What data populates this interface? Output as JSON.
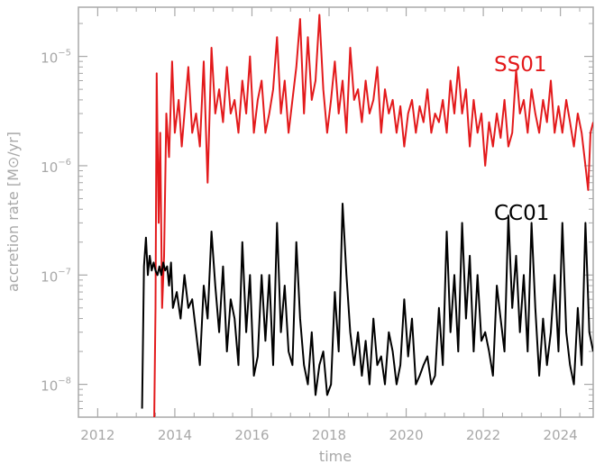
{
  "chart_data": {
    "type": "line",
    "title": "",
    "xlabel": "time",
    "ylabel": "accretion rate [M⊙/yr]",
    "xlim": [
      2011.5,
      2024.85
    ],
    "ylim_log10": [
      -8.3,
      -4.55
    ],
    "y_scale": "log",
    "grid": false,
    "x_ticks": [
      2012,
      2014,
      2016,
      2018,
      2020,
      2022,
      2024
    ],
    "x_tick_labels": [
      "2012",
      "2014",
      "2016",
      "2018",
      "2020",
      "2022",
      "2024"
    ],
    "y_ticks_log10": [
      -8,
      -7,
      -6,
      -5
    ],
    "y_tick_bases": [
      "10",
      "10",
      "10",
      "10"
    ],
    "y_tick_exps": [
      "−8",
      "−7",
      "−6",
      "−5"
    ],
    "legend_placement": "inline-right",
    "series": [
      {
        "name": "SS01",
        "color": "#e31a1c",
        "x": [
          2013.45,
          2013.5,
          2013.53,
          2013.58,
          2013.62,
          2013.67,
          2013.72,
          2013.78,
          2013.85,
          2013.93,
          2014.0,
          2014.1,
          2014.18,
          2014.25,
          2014.35,
          2014.45,
          2014.55,
          2014.65,
          2014.75,
          2014.85,
          2014.95,
          2015.05,
          2015.15,
          2015.25,
          2015.35,
          2015.45,
          2015.55,
          2015.65,
          2015.75,
          2015.85,
          2015.95,
          2016.05,
          2016.15,
          2016.25,
          2016.35,
          2016.45,
          2016.55,
          2016.65,
          2016.75,
          2016.85,
          2016.95,
          2017.05,
          2017.15,
          2017.25,
          2017.35,
          2017.45,
          2017.55,
          2017.65,
          2017.75,
          2017.85,
          2017.95,
          2018.05,
          2018.15,
          2018.25,
          2018.35,
          2018.45,
          2018.55,
          2018.65,
          2018.75,
          2018.85,
          2018.95,
          2019.05,
          2019.15,
          2019.25,
          2019.35,
          2019.45,
          2019.55,
          2019.65,
          2019.75,
          2019.85,
          2019.95,
          2020.05,
          2020.15,
          2020.25,
          2020.35,
          2020.45,
          2020.55,
          2020.65,
          2020.75,
          2020.85,
          2020.95,
          2021.05,
          2021.15,
          2021.25,
          2021.35,
          2021.45,
          2021.55,
          2021.65,
          2021.75,
          2021.85,
          2021.95,
          2022.05,
          2022.15,
          2022.25,
          2022.35,
          2022.45,
          2022.55,
          2022.65,
          2022.75,
          2022.85,
          2022.95,
          2023.05,
          2023.15,
          2023.25,
          2023.35,
          2023.45,
          2023.55,
          2023.65,
          2023.75,
          2023.85,
          2023.95,
          2024.05,
          2024.15,
          2024.25,
          2024.35,
          2024.45,
          2024.55,
          2024.65,
          2024.72,
          2024.78,
          2024.85
        ],
        "y": [
          1e-09,
          5e-08,
          7e-06,
          3e-07,
          2e-06,
          5e-08,
          1.5e-07,
          3e-06,
          1.2e-06,
          9e-06,
          2e-06,
          4e-06,
          1.5e-06,
          3e-06,
          8e-06,
          2e-06,
          3e-06,
          1.5e-06,
          9e-06,
          7e-07,
          1.2e-05,
          3e-06,
          5e-06,
          2.5e-06,
          8e-06,
          3e-06,
          4e-06,
          2e-06,
          6e-06,
          3e-06,
          1e-05,
          2e-06,
          4e-06,
          6e-06,
          2e-06,
          3e-06,
          5e-06,
          1.5e-05,
          3e-06,
          6e-06,
          2e-06,
          4e-06,
          8e-06,
          2.2e-05,
          3e-06,
          1.5e-05,
          4e-06,
          6e-06,
          2.4e-05,
          5e-06,
          2e-06,
          4e-06,
          9e-06,
          3e-06,
          6e-06,
          2e-06,
          1.2e-05,
          4e-06,
          5e-06,
          2.5e-06,
          6e-06,
          3e-06,
          4e-06,
          8e-06,
          2e-06,
          5e-06,
          3e-06,
          4e-06,
          2e-06,
          3.5e-06,
          1.5e-06,
          3e-06,
          4e-06,
          2e-06,
          3.5e-06,
          2.5e-06,
          5e-06,
          2e-06,
          3e-06,
          2.5e-06,
          4e-06,
          2e-06,
          6e-06,
          3e-06,
          8e-06,
          3e-06,
          5e-06,
          1.5e-06,
          4e-06,
          2e-06,
          3e-06,
          1e-06,
          2.5e-06,
          1.5e-06,
          3e-06,
          1.8e-06,
          4e-06,
          1.5e-06,
          2e-06,
          7.5e-06,
          3e-06,
          4e-06,
          2e-06,
          5e-06,
          3e-06,
          2e-06,
          4e-06,
          2.5e-06,
          6e-06,
          2e-06,
          3.5e-06,
          2e-06,
          4e-06,
          2.5e-06,
          1.5e-06,
          3e-06,
          2e-06,
          1e-06,
          6e-07,
          2e-06,
          2.5e-06
        ]
      },
      {
        "name": "CC01",
        "color": "#000000",
        "x": [
          2013.15,
          2013.2,
          2013.25,
          2013.3,
          2013.35,
          2013.4,
          2013.45,
          2013.5,
          2013.55,
          2013.6,
          2013.65,
          2013.7,
          2013.75,
          2013.8,
          2013.85,
          2013.9,
          2013.95,
          2014.05,
          2014.15,
          2014.25,
          2014.35,
          2014.45,
          2014.55,
          2014.65,
          2014.75,
          2014.85,
          2014.95,
          2015.05,
          2015.15,
          2015.25,
          2015.35,
          2015.45,
          2015.55,
          2015.65,
          2015.75,
          2015.85,
          2015.95,
          2016.05,
          2016.15,
          2016.25,
          2016.35,
          2016.45,
          2016.55,
          2016.65,
          2016.75,
          2016.85,
          2016.95,
          2017.05,
          2017.15,
          2017.25,
          2017.35,
          2017.45,
          2017.55,
          2017.65,
          2017.75,
          2017.85,
          2017.95,
          2018.05,
          2018.15,
          2018.25,
          2018.35,
          2018.45,
          2018.55,
          2018.65,
          2018.75,
          2018.85,
          2018.95,
          2019.05,
          2019.15,
          2019.25,
          2019.35,
          2019.45,
          2019.55,
          2019.65,
          2019.75,
          2019.85,
          2019.95,
          2020.05,
          2020.15,
          2020.25,
          2020.35,
          2020.45,
          2020.55,
          2020.65,
          2020.75,
          2020.85,
          2020.95,
          2021.05,
          2021.15,
          2021.25,
          2021.35,
          2021.45,
          2021.55,
          2021.65,
          2021.75,
          2021.85,
          2021.95,
          2022.05,
          2022.15,
          2022.25,
          2022.35,
          2022.45,
          2022.55,
          2022.65,
          2022.75,
          2022.85,
          2022.95,
          2023.05,
          2023.15,
          2023.25,
          2023.35,
          2023.45,
          2023.55,
          2023.65,
          2023.75,
          2023.85,
          2023.95,
          2024.05,
          2024.15,
          2024.25,
          2024.35,
          2024.45,
          2024.55,
          2024.65,
          2024.75,
          2024.85
        ],
        "y": [
          6e-09,
          1.2e-07,
          2.2e-07,
          1e-07,
          1.5e-07,
          1.1e-07,
          1.3e-07,
          1.1e-07,
          1e-07,
          1.2e-07,
          1e-07,
          1.3e-07,
          1.1e-07,
          1.2e-07,
          8e-08,
          1.3e-07,
          5e-08,
          7e-08,
          4e-08,
          1e-07,
          5e-08,
          6e-08,
          3e-08,
          1.5e-08,
          8e-08,
          4e-08,
          2.5e-07,
          8e-08,
          3e-08,
          1.2e-07,
          2e-08,
          6e-08,
          4e-08,
          1.5e-08,
          2e-07,
          3e-08,
          1e-07,
          1.2e-08,
          1.8e-08,
          1e-07,
          2.5e-08,
          1e-07,
          1.5e-08,
          3e-07,
          3e-08,
          8e-08,
          2e-08,
          1.5e-08,
          2e-07,
          4e-08,
          1.5e-08,
          1e-08,
          3e-08,
          8e-09,
          1.5e-08,
          2e-08,
          8e-09,
          1e-08,
          7e-08,
          2e-08,
          4.5e-07,
          1e-07,
          3e-08,
          1.5e-08,
          3e-08,
          1.2e-08,
          2.5e-08,
          1e-08,
          4e-08,
          1.5e-08,
          1.8e-08,
          1e-08,
          3e-08,
          2e-08,
          1e-08,
          1.5e-08,
          6e-08,
          1.8e-08,
          4e-08,
          1e-08,
          1.2e-08,
          1.5e-08,
          1.8e-08,
          1e-08,
          1.2e-08,
          5e-08,
          1.5e-08,
          2.5e-07,
          3e-08,
          1e-07,
          2e-08,
          3e-07,
          4e-08,
          1.5e-07,
          2e-08,
          1e-07,
          2.5e-08,
          3e-08,
          2e-08,
          1.2e-08,
          8e-08,
          4e-08,
          2e-08,
          3.5e-07,
          5e-08,
          1.5e-07,
          3e-08,
          1e-07,
          2e-08,
          3e-07,
          5e-08,
          1.2e-08,
          4e-08,
          1.5e-08,
          3e-08,
          1e-07,
          2e-08,
          3e-07,
          3e-08,
          1.5e-08,
          1e-08,
          5e-08,
          1.5e-08,
          3e-07,
          3e-08,
          2e-08
        ]
      }
    ]
  }
}
